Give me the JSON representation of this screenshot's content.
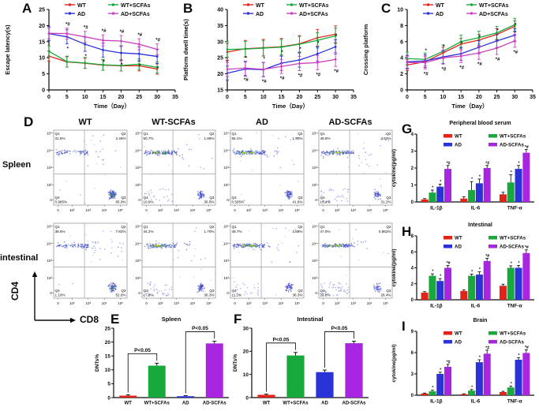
{
  "panel_labels": {
    "a": "A",
    "b": "B",
    "c": "C",
    "d": "D",
    "e": "E",
    "f": "F",
    "g": "G",
    "h": "H",
    "i": "I"
  },
  "colors": {
    "wt": "#e2231a",
    "wt_scfas": "#18a93c",
    "ad": "#2a33d8",
    "ad_scfas": "#cb3fc0",
    "ad_scfas_bar": "#a826e0",
    "axis": "#0a0a0a",
    "flow_dot": "#3340c6",
    "flow_core_green": "#2fa33c",
    "flow_core_yellow": "#d2ca25"
  },
  "flow": {
    "columns": [
      "WT",
      "WT-SCFAs",
      "AD",
      "AD-SCFAs"
    ],
    "rows": [
      "Spleen",
      "intestinal"
    ],
    "y_marker": "CD4",
    "x_marker": "CD8",
    "x_ticks": [
      "0",
      "10²",
      "10³",
      "10⁴",
      "10⁵"
    ],
    "y_ticks": [
      "10⁵",
      "10⁴",
      "10³",
      "10²",
      "0"
    ],
    "quadrant_names": [
      "Q1",
      "Q2",
      "Q3",
      "Q4"
    ],
    "plots": [
      {
        "row": "Spleen",
        "col": "WT",
        "q1": "31.5%",
        "q2": "2.46%",
        "q3": "65.0%",
        "q4": "0.985%"
      },
      {
        "row": "Spleen",
        "col": "WT-SCFAs",
        "q1": "50.7%",
        "q2": "1.89%",
        "q3": "36.0%",
        "q4": "10.9%"
      },
      {
        "row": "Spleen",
        "col": "AD",
        "q1": "56.1%",
        "q2": "1.90%",
        "q3": "41.6%",
        "q4": "0.505%"
      },
      {
        "row": "Spleen",
        "col": "AD-SCFAs",
        "q1": "49.6%",
        "q2": "3.62%",
        "q3": "31.2%",
        "q4": "15.4%"
      },
      {
        "row": "intestinal",
        "col": "WT",
        "q1": "39.6%",
        "q2": "7.82%",
        "q3": "52.6%",
        "q4": "1.10%"
      },
      {
        "row": "intestinal",
        "col": "WT-SCFAs",
        "q1": "44.2%",
        "q2": "1.70%",
        "q3": "36.3%",
        "q4": "17.8%"
      },
      {
        "row": "intestinal",
        "col": "AD",
        "q1": "49.7%",
        "q2": "2.88%",
        "q3": "36.3%",
        "q4": "11.1%"
      },
      {
        "row": "intestinal",
        "col": "AD-SCFAs",
        "q1": "47.0%",
        "q2": "0.962%",
        "q3": "28.4%",
        "q4": "23.8%"
      }
    ]
  },
  "chart_data": [
    {
      "id": "A",
      "type": "line",
      "title": "",
      "ylabel": "Escape latency(s)",
      "xlabel": "Time（Day）",
      "x": [
        0,
        5,
        10,
        15,
        20,
        25,
        30
      ],
      "xlim": [
        0,
        35
      ],
      "xticks": [
        0,
        5,
        10,
        15,
        20,
        25,
        30,
        35
      ],
      "ylim": [
        0,
        25
      ],
      "yticks": [
        0,
        5,
        10,
        15,
        20,
        25
      ],
      "series": [
        {
          "name": "WT",
          "color": "wt",
          "values": [
            10.5,
            8.7,
            8.3,
            7.7,
            7.5,
            7.5,
            6.5
          ],
          "err": 1.6,
          "sig": "",
          "sig_pos": "below"
        },
        {
          "name": "WT+SCFAs",
          "color": "wt_scfas",
          "values": [
            12.0,
            8.8,
            8.4,
            7.8,
            7.6,
            8.0,
            7.0
          ],
          "err": 1.7,
          "sig": "",
          "sig_pos": "below"
        },
        {
          "name": "AD",
          "color": "ad",
          "values": [
            17.5,
            16.5,
            14.2,
            12.4,
            11.5,
            11.2,
            10.4
          ],
          "err": 2.2,
          "sig": "*",
          "sig_pos": "below"
        },
        {
          "name": "AD+SCFAs",
          "color": "ad_scfas",
          "values": [
            17.6,
            17.5,
            16.5,
            15.4,
            15.2,
            14.2,
            12.6
          ],
          "err": 1.7,
          "sig": "*#",
          "sig_pos": "above"
        }
      ]
    },
    {
      "id": "B",
      "type": "line",
      "title": "",
      "ylabel": "Platform dwell time(s)",
      "xlabel": "Time（Day）",
      "x": [
        0,
        5,
        10,
        15,
        20,
        25,
        30
      ],
      "xlim": [
        0,
        35
      ],
      "xticks": [
        0,
        5,
        10,
        15,
        20,
        25,
        30,
        35
      ],
      "ylim": [
        15,
        40
      ],
      "yticks": [
        15,
        20,
        25,
        30,
        35,
        40
      ],
      "series": [
        {
          "name": "WT",
          "color": "wt",
          "values": [
            26.8,
            27.8,
            28.1,
            28.4,
            29.3,
            31.2,
            32.3
          ],
          "err": 2.6,
          "sig": "",
          "sig_pos": "below"
        },
        {
          "name": "WT+SCFAs",
          "color": "wt_scfas",
          "values": [
            27.6,
            27.7,
            28.0,
            28.3,
            29.2,
            30.4,
            31.8
          ],
          "err": 2.4,
          "sig": "",
          "sig_pos": "below"
        },
        {
          "name": "AD",
          "color": "ad",
          "values": [
            20.2,
            21.5,
            21.3,
            23.3,
            24.3,
            26.2,
            28.4
          ],
          "err": 2.2,
          "sig": "*",
          "sig_pos": "above"
        },
        {
          "name": "AD+SCFAs",
          "color": "ad_scfas",
          "values": [
            21.4,
            21.8,
            21.4,
            22.3,
            23.2,
            23.5,
            24.5
          ],
          "err": 2.2,
          "sig": "*#",
          "sig_pos": "below"
        }
      ]
    },
    {
      "id": "C",
      "type": "line",
      "title": "",
      "ylabel": "Crossing platform",
      "xlabel": "Time（Day）",
      "x": [
        0,
        5,
        10,
        15,
        20,
        25,
        30
      ],
      "xlim": [
        0,
        35
      ],
      "xticks": [
        0,
        5,
        10,
        15,
        20,
        25,
        30,
        35
      ],
      "ylim": [
        0,
        10
      ],
      "yticks": [
        0,
        2,
        4,
        6,
        8,
        10
      ],
      "series": [
        {
          "name": "WT",
          "color": "wt",
          "values": [
            3.1,
            3.5,
            4.6,
            5.7,
            6.2,
            6.9,
            7.9
          ],
          "err": 0.7,
          "sig": "",
          "sig_pos": "below"
        },
        {
          "name": "WT+SCFAs",
          "color": "wt_scfas",
          "values": [
            3.9,
            3.8,
            4.8,
            6.0,
            6.5,
            7.1,
            8.1
          ],
          "err": 0.8,
          "sig": "",
          "sig_pos": "below"
        },
        {
          "name": "AD",
          "color": "ad",
          "values": [
            3.5,
            3.6,
            4.1,
            4.5,
            5.3,
            6.1,
            6.8
          ],
          "err": 0.8,
          "sig": "*",
          "sig_pos": "above"
        },
        {
          "name": "AD+SCFAs",
          "color": "ad_scfas",
          "values": [
            3.4,
            3.4,
            4.0,
            4.2,
            4.6,
            5.2,
            6.1
          ],
          "err": 0.8,
          "sig": "*#",
          "sig_pos": "below"
        }
      ]
    },
    {
      "id": "E",
      "type": "bar",
      "title": "Spleen",
      "ylabel": "DNTs%",
      "categories": [
        "WT",
        "WT+SCFAs",
        "AD",
        "AD-SCFAs"
      ],
      "values": [
        0.7,
        11.5,
        0.5,
        19.5
      ],
      "errors": [
        0.3,
        0.9,
        0.2,
        0.8
      ],
      "ylim": [
        0,
        25
      ],
      "yticks": [
        0,
        5,
        10,
        15,
        20,
        25
      ],
      "bar_colors": [
        "wt",
        "wt_scfas",
        "ad",
        "ad_scfas_bar"
      ],
      "brackets": [
        {
          "from": 0,
          "to": 1,
          "label": "P<0.05"
        },
        {
          "from": 2,
          "to": 3,
          "label": "P<0.05"
        }
      ]
    },
    {
      "id": "F",
      "type": "bar",
      "title": "Intestinal",
      "ylabel": "DNTs%",
      "categories": [
        "WT",
        "WT+SCFAs",
        "AD",
        "AD-SCFAs"
      ],
      "values": [
        1.2,
        18.2,
        11.0,
        23.5
      ],
      "errors": [
        0.3,
        1.3,
        0.9,
        0.9
      ],
      "ylim": [
        0,
        30
      ],
      "yticks": [
        0,
        10,
        20,
        30
      ],
      "bar_colors": [
        "wt",
        "wt_scfas",
        "ad",
        "ad_scfas_bar"
      ],
      "brackets": [
        {
          "from": 0,
          "to": 1,
          "label": "P<0.05"
        },
        {
          "from": 2,
          "to": 3,
          "label": "P<0.05"
        }
      ]
    },
    {
      "id": "G",
      "type": "grouped_bar",
      "title": "Peripheral blood serum",
      "ylabel": "cytokine(pg/ml)",
      "categories": [
        "IL-1β",
        "IL-6",
        "TNF-α"
      ],
      "ylim": [
        0,
        4
      ],
      "yticks": [
        0,
        1,
        2,
        3,
        4
      ],
      "series": [
        {
          "name": "WT",
          "color": "wt",
          "values": [
            0.15,
            0.2,
            0.45
          ],
          "errors": [
            0.05,
            0.1,
            0.12
          ],
          "sig": ""
        },
        {
          "name": "WT+SCFAs",
          "color": "wt_scfas",
          "values": [
            0.55,
            0.7,
            1.15
          ],
          "errors": [
            0.15,
            0.5,
            0.45
          ],
          "sig": "*"
        },
        {
          "name": "AD",
          "color": "ad",
          "values": [
            0.9,
            1.1,
            1.95
          ],
          "errors": [
            0.15,
            0.25,
            0.2
          ],
          "sig": "*"
        },
        {
          "name": "AD-SCFAs",
          "color": "ad_scfas_bar",
          "values": [
            1.95,
            2.0,
            2.9
          ],
          "errors": [
            0.2,
            0.15,
            0.2
          ],
          "sig": "*#"
        }
      ]
    },
    {
      "id": "H",
      "type": "grouped_bar",
      "title": "Intestinal",
      "ylabel": "cytokine(pg/ml)",
      "categories": [
        "IL-1β",
        "IL-6",
        "TNF-α"
      ],
      "ylim": [
        0,
        8
      ],
      "yticks": [
        0,
        2,
        4,
        6,
        8
      ],
      "series": [
        {
          "name": "WT",
          "color": "wt",
          "values": [
            0.9,
            1.1,
            1.75
          ],
          "errors": [
            0.12,
            0.15,
            0.2
          ],
          "sig": ""
        },
        {
          "name": "WT+SCFAs",
          "color": "wt_scfas",
          "values": [
            3.0,
            3.0,
            4.0
          ],
          "errors": [
            0.25,
            0.2,
            0.25
          ],
          "sig": "*"
        },
        {
          "name": "AD",
          "color": "ad",
          "values": [
            2.35,
            3.15,
            4.0
          ],
          "errors": [
            0.3,
            0.35,
            0.3
          ],
          "sig": "*"
        },
        {
          "name": "AD-SCFAs",
          "color": "ad_scfas_bar",
          "values": [
            4.0,
            4.85,
            5.85
          ],
          "errors": [
            0.3,
            0.35,
            0.4
          ],
          "sig": "*#"
        }
      ]
    },
    {
      "id": "I",
      "type": "grouped_bar",
      "title": "Brain",
      "ylabel": "cytokine(pg/ml)",
      "categories": [
        "IL-1β",
        "IL-6",
        "TNF-α"
      ],
      "ylim": [
        0,
        9
      ],
      "yticks": [
        0,
        3,
        6,
        9
      ],
      "series": [
        {
          "name": "WT",
          "color": "wt",
          "values": [
            0.25,
            0.15,
            0.45
          ],
          "errors": [
            0.06,
            0.05,
            0.1
          ],
          "sig": ""
        },
        {
          "name": "WT+SCFAs",
          "color": "wt_scfas",
          "values": [
            0.55,
            0.65,
            1.1
          ],
          "errors": [
            0.15,
            0.15,
            0.2
          ],
          "sig": "*"
        },
        {
          "name": "AD",
          "color": "ad",
          "values": [
            3.0,
            4.65,
            5.0
          ],
          "errors": [
            0.25,
            0.35,
            0.3
          ],
          "sig": "*"
        },
        {
          "name": "AD-SCFAs",
          "color": "ad_scfas_bar",
          "values": [
            4.0,
            5.85,
            5.95
          ],
          "errors": [
            0.35,
            0.5,
            0.45
          ],
          "sig": "*#"
        }
      ]
    }
  ]
}
